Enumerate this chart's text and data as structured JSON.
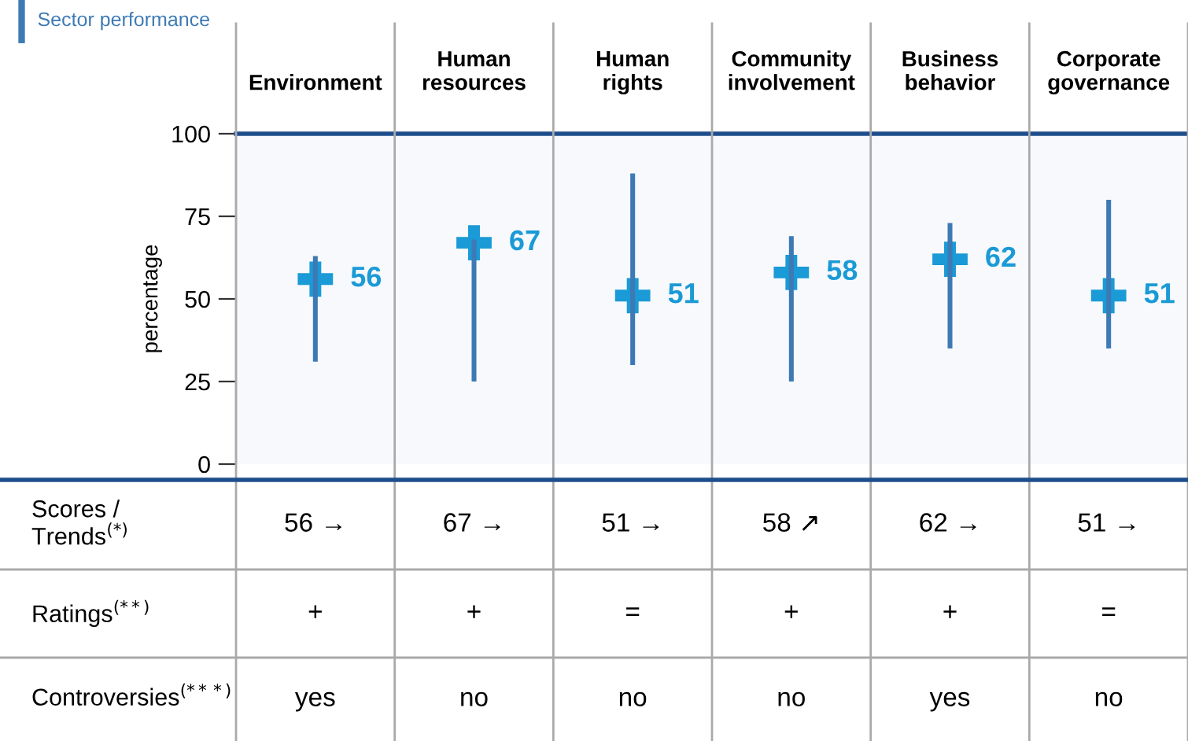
{
  "chart_data": {
    "type": "bar",
    "categories": [
      "Environment",
      "Human\nresources",
      "Human\nrights",
      "Community\ninvolvement",
      "Business\nbehavior",
      "Corporate\ngovernance"
    ],
    "series": [
      {
        "name": "Sector performance",
        "color": "#3d7ab5",
        "base": [
          31,
          25,
          30,
          25,
          35,
          35
        ],
        "values": [
          32,
          43,
          58,
          44,
          38,
          45
        ]
      },
      {
        "type": "scatter",
        "marker": "cross",
        "color": "#1a9ad6",
        "values": [
          56,
          67,
          51,
          58,
          62,
          51
        ],
        "value_labels": [
          "56",
          "67",
          "51",
          "58",
          "62",
          "51"
        ]
      }
    ],
    "ylabel": "percentage",
    "ylim": [
      0,
      100
    ],
    "yticks": [
      0,
      25,
      50,
      75,
      100
    ],
    "grid": false,
    "legend": "top left",
    "annotations": [
      "Scores /\nTrends$^{(*)}$",
      "56 →",
      "67 →",
      "51 →",
      "58 ↗",
      "62 →",
      "51 →",
      "Ratings$^{(**)}$",
      "+",
      "+",
      "=",
      "+",
      "+",
      "=",
      "Controversies$^{(***)}$",
      "yes",
      "no",
      "no",
      "no",
      "yes",
      "no"
    ]
  }
}
